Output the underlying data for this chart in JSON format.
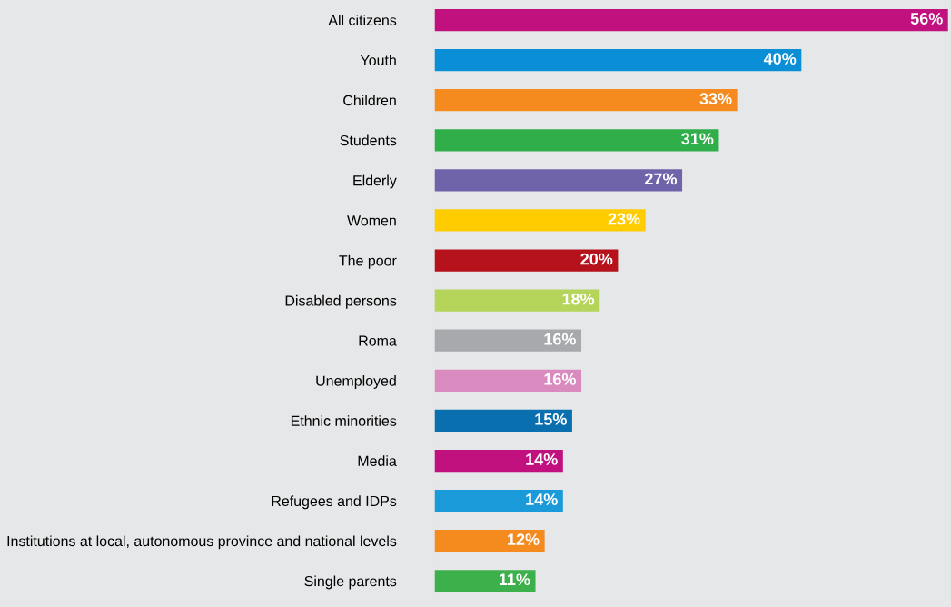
{
  "chart_data": {
    "type": "bar",
    "orientation": "horizontal",
    "grid": false,
    "legend": false,
    "tick_labels": "y",
    "categories": [
      "All citizens",
      "Youth",
      "Children",
      "Students",
      "Elderly",
      "Women",
      "The poor",
      "Disabled persons",
      "Roma",
      "Unemployed",
      "Ethnic minorities",
      "Media",
      "Refugees and IDPs",
      "Institutions at local, autonomous province and national levels",
      "Single parents"
    ],
    "values": [
      56,
      40,
      33,
      31,
      27,
      23,
      20,
      18,
      16,
      16,
      15,
      14,
      14,
      12,
      11
    ],
    "value_labels": [
      "56%",
      "40%",
      "33%",
      "31%",
      "27%",
      "23%",
      "20%",
      "18%",
      "16%",
      "16%",
      "15%",
      "14%",
      "14%",
      "12%",
      "11%"
    ],
    "colors": [
      "#c0117f",
      "#0a8fd6",
      "#f58a1f",
      "#2fae4a",
      "#6f63aa",
      "#ffcc00",
      "#b5121b",
      "#b5d45a",
      "#a7a9ac",
      "#d98bbf",
      "#0a6fae",
      "#c0117f",
      "#1a9ad9",
      "#f58a1f",
      "#3cb04a"
    ]
  }
}
